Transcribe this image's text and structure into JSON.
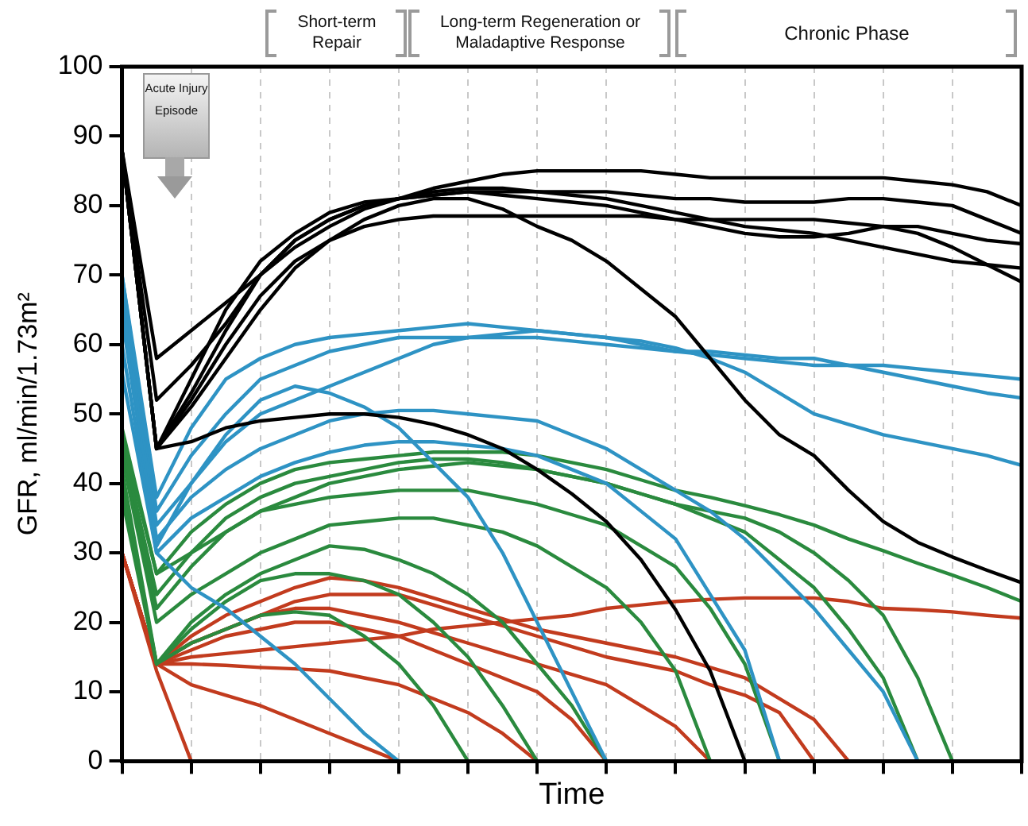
{
  "chart_data": {
    "type": "line",
    "xlabel": "Time",
    "ylabel": "GFR, ml/min/1.73m²",
    "annotations": [
      "Short-term Repair",
      "Long-term Regeneration or Maladaptive Response",
      "Chronic Phase",
      "Acute Injury Episode"
    ],
    "categories": [
      null,
      null,
      null,
      null,
      null,
      null,
      null,
      null,
      null,
      null,
      null,
      null,
      null,
      null,
      null,
      null,
      null,
      null,
      null,
      null,
      null,
      null,
      null,
      null,
      null,
      null,
      null
    ],
    "ylim": [
      0,
      100
    ],
    "yticks": [
      0,
      10,
      20,
      30,
      40,
      50,
      60,
      70,
      80,
      90,
      100
    ],
    "tick_labels": "y",
    "grid": "x",
    "legend": false,
    "marker": "none",
    "line_style": "solid",
    "series": [
      {
        "color": "#000000",
        "values": [
          88,
          58,
          62,
          66,
          70,
          74,
          77,
          79.5,
          81,
          82.5,
          83.5,
          84.5,
          85,
          85,
          85,
          85,
          84.5,
          84,
          84,
          84,
          84,
          84,
          84,
          83.5,
          83,
          82,
          80
        ]
      },
      {
        "color": "#000000",
        "values": [
          88,
          52,
          57,
          63,
          70,
          75,
          78,
          80,
          81,
          81.5,
          82,
          82,
          82,
          82,
          82,
          81.5,
          81,
          81,
          80.5,
          80.5,
          80.5,
          81,
          81,
          80.5,
          80,
          78,
          76
        ]
      },
      {
        "color": "#000000",
        "values": [
          88,
          45,
          55,
          65,
          72,
          76,
          79,
          80.5,
          81,
          81.5,
          82,
          81.5,
          81,
          80.5,
          80,
          79,
          78,
          77,
          76,
          75.5,
          75.5,
          76,
          77,
          77,
          76,
          75,
          74.5
        ]
      },
      {
        "color": "#000000",
        "values": [
          88,
          45,
          53,
          62,
          70,
          75,
          78,
          80,
          81,
          82,
          82.5,
          82.5,
          82,
          81.5,
          81,
          80,
          79,
          78,
          77,
          76.5,
          76,
          75,
          74,
          73,
          72,
          71.5,
          71
        ]
      },
      {
        "color": "#000000",
        "values": [
          88,
          45,
          52,
          60,
          67,
          72,
          75,
          77,
          78,
          78.5,
          78.5,
          78.5,
          78.5,
          78.5,
          78.5,
          78.5,
          78,
          78,
          78,
          78,
          78,
          77.5,
          77,
          76,
          74,
          71.5,
          69
        ]
      },
      {
        "color": "#000000",
        "values": [
          88,
          45,
          51,
          58,
          65,
          71,
          75,
          78,
          80,
          81,
          81,
          79.5,
          77,
          75,
          72,
          68,
          64,
          58,
          52,
          47,
          44,
          39,
          34.5,
          31.5,
          29.4,
          27.5,
          25.7
        ]
      },
      {
        "color": "#000000",
        "values": [
          88,
          45,
          46,
          48,
          49,
          49.5,
          50,
          50,
          49.5,
          48.5,
          47,
          45,
          42,
          38.5,
          34.5,
          29,
          21.8,
          13,
          0,
          null,
          null,
          null,
          null,
          null,
          null,
          null,
          null
        ]
      },
      {
        "color": "#2e93c4",
        "values": [
          70,
          38,
          48,
          55,
          58,
          60,
          61,
          61.5,
          62,
          62.5,
          63,
          62.5,
          62,
          61.5,
          61,
          60,
          59,
          58.5,
          58,
          57.5,
          57,
          57,
          57,
          56.5,
          56,
          55.5,
          55
        ]
      },
      {
        "color": "#2e93c4",
        "values": [
          70,
          36,
          44,
          50,
          55,
          57,
          59,
          60,
          61,
          61,
          61,
          61,
          61,
          60.5,
          60,
          59.5,
          59,
          59,
          58.5,
          58,
          58,
          57,
          56,
          55,
          54,
          53,
          52.3
        ]
      },
      {
        "color": "#2e93c4",
        "values": [
          68,
          34,
          40,
          46,
          50,
          52,
          54,
          56,
          58,
          60,
          61,
          61.5,
          62,
          61.5,
          61,
          60.5,
          59.5,
          58,
          56,
          53,
          50,
          48.5,
          47,
          46,
          45,
          44,
          42.6
        ]
      },
      {
        "color": "#2e93c4",
        "values": [
          66,
          32,
          38,
          42,
          45,
          47,
          49,
          50,
          50.5,
          50.5,
          50,
          49.5,
          49,
          47,
          45,
          42,
          39,
          36,
          32,
          27,
          22,
          16,
          10,
          0,
          null,
          null,
          null
        ]
      },
      {
        "color": "#2e93c4",
        "values": [
          64,
          31,
          40,
          47,
          52,
          54,
          53,
          51,
          48,
          43,
          38,
          30,
          20,
          10,
          0,
          null,
          null,
          null,
          null,
          null,
          null,
          null,
          null,
          null,
          null,
          null,
          null
        ]
      },
      {
        "color": "#2e93c4",
        "values": [
          60,
          30,
          35,
          38,
          41,
          43,
          44.5,
          45.5,
          46,
          46,
          45.5,
          45,
          44,
          42,
          40,
          36,
          32,
          24,
          16,
          0,
          null,
          null,
          null,
          null,
          null,
          null,
          null
        ]
      },
      {
        "color": "#2e93c4",
        "values": [
          56,
          30,
          25,
          22,
          18,
          14,
          9,
          4,
          0,
          null,
          null,
          null,
          null,
          null,
          null,
          null,
          null,
          null,
          null,
          null,
          null,
          null,
          null,
          null,
          null,
          null,
          null
        ]
      },
      {
        "color": "#2a8a3e",
        "values": [
          47,
          27,
          33,
          37,
          40,
          42,
          43,
          43.5,
          44,
          44.5,
          44.5,
          44.5,
          44,
          43,
          42,
          40.5,
          39,
          38,
          36.8,
          35.5,
          34,
          32,
          30.3,
          28.5,
          26.8,
          25,
          23
        ]
      },
      {
        "color": "#2a8a3e",
        "values": [
          46,
          24,
          30,
          35,
          38,
          40,
          41,
          42,
          43,
          43.5,
          43.5,
          43,
          42,
          41,
          40,
          38.5,
          37,
          36,
          35,
          33,
          30,
          26,
          21,
          12,
          0,
          null,
          null
        ]
      },
      {
        "color": "#2a8a3e",
        "values": [
          45,
          22,
          28,
          33,
          36,
          38,
          40,
          41,
          42,
          42.5,
          43,
          42.5,
          42,
          41,
          40,
          38.5,
          37,
          35,
          33,
          29,
          25,
          19,
          12,
          0,
          null,
          null,
          null
        ]
      },
      {
        "color": "#2a8a3e",
        "values": [
          48,
          27,
          30,
          33,
          36,
          37,
          38,
          38.5,
          39,
          39,
          39,
          38,
          37,
          35.5,
          34,
          31,
          28,
          22,
          14,
          0,
          null,
          null,
          null,
          null,
          null,
          null,
          null
        ]
      },
      {
        "color": "#2a8a3e",
        "values": [
          44,
          20,
          24,
          27,
          30,
          32,
          34,
          34.5,
          35,
          35,
          34,
          33,
          31,
          28,
          25,
          20,
          13,
          0,
          null,
          null,
          null,
          null,
          null,
          null,
          null,
          null,
          null
        ]
      },
      {
        "color": "#2a8a3e",
        "values": [
          42,
          14,
          20,
          24,
          27,
          29,
          31,
          30.5,
          29,
          27,
          24,
          20,
          14,
          8,
          0,
          null,
          null,
          null,
          null,
          null,
          null,
          null,
          null,
          null,
          null,
          null,
          null
        ]
      },
      {
        "color": "#2a8a3e",
        "values": [
          40,
          14,
          19,
          23,
          26,
          27,
          27,
          26,
          24,
          20,
          15,
          8,
          0,
          null,
          null,
          null,
          null,
          null,
          null,
          null,
          null,
          null,
          null,
          null,
          null,
          null,
          null
        ]
      },
      {
        "color": "#2a8a3e",
        "values": [
          38,
          14,
          17,
          19,
          21,
          21.5,
          21,
          18,
          14,
          8,
          0,
          null,
          null,
          null,
          null,
          null,
          null,
          null,
          null,
          null,
          null,
          null,
          null,
          null,
          null,
          null,
          null
        ]
      },
      {
        "color": "#c23b1e",
        "values": [
          30,
          14,
          15,
          15.5,
          16,
          16.5,
          17,
          17.5,
          18,
          19,
          19.5,
          20,
          20.5,
          21,
          22,
          22.5,
          23,
          23.3,
          23.5,
          23.5,
          23.5,
          23,
          22,
          21.8,
          21.5,
          21,
          20.6
        ]
      },
      {
        "color": "#c23b1e",
        "values": [
          30,
          14,
          18,
          21,
          23,
          25,
          26.4,
          26,
          25,
          23.5,
          22,
          20.5,
          19,
          18,
          17,
          16,
          15,
          13.5,
          12,
          9,
          6,
          0,
          null,
          null,
          null,
          null,
          null
        ]
      },
      {
        "color": "#c23b1e",
        "values": [
          30,
          14,
          17,
          19,
          21,
          23,
          24,
          24,
          24,
          22.5,
          21,
          19.5,
          18,
          16.5,
          15,
          14,
          13,
          11,
          9.5,
          7,
          0,
          null,
          null,
          null,
          null,
          null,
          null
        ]
      },
      {
        "color": "#c23b1e",
        "values": [
          30,
          14,
          17,
          19,
          21,
          22,
          22,
          21,
          20,
          18.5,
          17,
          15.5,
          14,
          12.5,
          11,
          8,
          5,
          0,
          null,
          null,
          null,
          null,
          null,
          null,
          null,
          null,
          null
        ]
      },
      {
        "color": "#c23b1e",
        "values": [
          30,
          14,
          16,
          18,
          19,
          20,
          20,
          19,
          18,
          16,
          14,
          12,
          10,
          6,
          0,
          null,
          null,
          null,
          null,
          null,
          null,
          null,
          null,
          null,
          null,
          null,
          null
        ]
      },
      {
        "color": "#c23b1e",
        "values": [
          30,
          14,
          14,
          13.8,
          13.5,
          13.3,
          13,
          12,
          11,
          9,
          7,
          4,
          0,
          null,
          null,
          null,
          null,
          null,
          null,
          null,
          null,
          null,
          null,
          null,
          null,
          null,
          null
        ]
      },
      {
        "color": "#c23b1e",
        "values": [
          30,
          14,
          11,
          9.5,
          8,
          6,
          4,
          2,
          0,
          null,
          null,
          null,
          null,
          null,
          null,
          null,
          null,
          null,
          null,
          null,
          null,
          null,
          null,
          null,
          null,
          null,
          null
        ]
      },
      {
        "color": "#c23b1e",
        "values": [
          30,
          13,
          0,
          null,
          null,
          null,
          null,
          null,
          null,
          null,
          null,
          null,
          null,
          null,
          null,
          null,
          null,
          null,
          null,
          null,
          null,
          null,
          null,
          null,
          null,
          null,
          null
        ]
      }
    ]
  }
}
